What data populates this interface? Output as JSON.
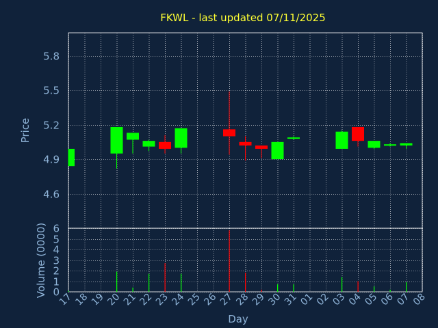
{
  "chart_data": [
    {
      "type": "candlestick",
      "title": "FKWL - last updated 07/11/2025",
      "ylabel": "Price",
      "ylim": [
        4.3,
        6.0
      ],
      "yticks": [
        4.6,
        4.9,
        5.2,
        5.5,
        5.8
      ],
      "ytick_labels": [
        "4.6",
        "4.9",
        "5.2",
        "5.5",
        "5.8"
      ],
      "grid": true,
      "colors": {
        "up": "#00ff00",
        "down": "#ff0000"
      },
      "candles": [
        {
          "day": "17",
          "open": 4.84,
          "close": 4.99,
          "high": 4.99,
          "low": 4.84
        },
        {
          "day": "20",
          "open": 4.95,
          "close": 5.18,
          "high": 5.18,
          "low": 4.82
        },
        {
          "day": "21",
          "open": 5.07,
          "close": 5.13,
          "high": 5.13,
          "low": 4.95
        },
        {
          "day": "22",
          "open": 5.01,
          "close": 5.06,
          "high": 5.07,
          "low": 4.97
        },
        {
          "day": "23",
          "open": 5.05,
          "close": 4.99,
          "high": 5.11,
          "low": 4.95
        },
        {
          "day": "24",
          "open": 5.0,
          "close": 5.17,
          "high": 5.17,
          "low": 4.95
        },
        {
          "day": "27",
          "open": 5.16,
          "close": 5.1,
          "high": 5.49,
          "low": 4.94
        },
        {
          "day": "28",
          "open": 5.05,
          "close": 5.02,
          "high": 5.1,
          "low": 4.89
        },
        {
          "day": "29",
          "open": 5.02,
          "close": 4.99,
          "high": 5.02,
          "low": 4.91
        },
        {
          "day": "30",
          "open": 4.9,
          "close": 5.05,
          "high": 5.05,
          "low": 4.9
        },
        {
          "day": "31",
          "open": 5.08,
          "close": 5.09,
          "high": 5.1,
          "low": 5.07
        },
        {
          "day": "03",
          "open": 4.99,
          "close": 5.14,
          "high": 5.15,
          "low": 4.99
        },
        {
          "day": "04",
          "open": 5.18,
          "close": 5.06,
          "high": 5.18,
          "low": 5.01
        },
        {
          "day": "05",
          "open": 5.0,
          "close": 5.06,
          "high": 5.06,
          "low": 4.99
        },
        {
          "day": "06",
          "open": 5.02,
          "close": 5.03,
          "high": 5.04,
          "low": 5.01
        },
        {
          "day": "07",
          "open": 5.02,
          "close": 5.04,
          "high": 5.04,
          "low": 4.99
        }
      ]
    },
    {
      "type": "bar",
      "ylabel": "Volume (0000)",
      "xlabel": "Day",
      "ylim": [
        0,
        6
      ],
      "yticks": [
        0,
        1,
        2,
        3,
        4,
        5,
        6
      ],
      "ytick_labels": [
        "0",
        "1",
        "2",
        "3",
        "4",
        "5",
        "6"
      ],
      "categories": [
        "17",
        "18",
        "19",
        "20",
        "21",
        "22",
        "23",
        "24",
        "25",
        "26",
        "27",
        "28",
        "29",
        "30",
        "31",
        "01",
        "02",
        "03",
        "04",
        "05",
        "06",
        "07",
        "08"
      ],
      "grid": true,
      "bars": [
        {
          "day": "17",
          "value": 0.1,
          "direction": "up"
        },
        {
          "day": "20",
          "value": 1.9,
          "direction": "up"
        },
        {
          "day": "21",
          "value": 0.4,
          "direction": "up"
        },
        {
          "day": "22",
          "value": 1.7,
          "direction": "up"
        },
        {
          "day": "23",
          "value": 2.7,
          "direction": "down"
        },
        {
          "day": "24",
          "value": 1.7,
          "direction": "up"
        },
        {
          "day": "27",
          "value": 5.8,
          "direction": "down"
        },
        {
          "day": "28",
          "value": 1.8,
          "direction": "down"
        },
        {
          "day": "29",
          "value": 0.2,
          "direction": "down"
        },
        {
          "day": "30",
          "value": 0.7,
          "direction": "up"
        },
        {
          "day": "31",
          "value": 0.7,
          "direction": "up"
        },
        {
          "day": "03",
          "value": 1.4,
          "direction": "up"
        },
        {
          "day": "04",
          "value": 1.0,
          "direction": "down"
        },
        {
          "day": "05",
          "value": 0.5,
          "direction": "up"
        },
        {
          "day": "06",
          "value": 0.2,
          "direction": "up"
        },
        {
          "day": "07",
          "value": 0.9,
          "direction": "up"
        }
      ]
    }
  ]
}
